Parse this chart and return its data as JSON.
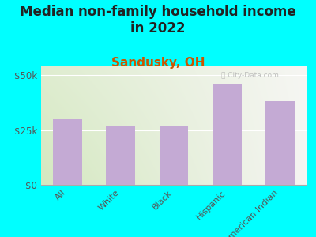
{
  "title": "Median non-family household income\nin 2022",
  "subtitle": "Sandusky, OH",
  "categories": [
    "All",
    "White",
    "Black",
    "Hispanic",
    "American Indian"
  ],
  "values": [
    30000,
    27000,
    27000,
    46000,
    38000
  ],
  "bar_color": "#c4aad4",
  "bg_color": "#00ffff",
  "plot_bg_left": "#d4e8c0",
  "plot_bg_right": "#f5f5f2",
  "yticks": [
    0,
    25000,
    50000
  ],
  "ytick_labels": [
    "$0",
    "$25k",
    "$50k"
  ],
  "ylim": [
    0,
    54000
  ],
  "title_fontsize": 12,
  "subtitle_fontsize": 11,
  "subtitle_color": "#cc5500",
  "title_color": "#222222",
  "tick_color": "#555555",
  "watermark": "City-Data.com",
  "watermark_icon": "ⓘ"
}
